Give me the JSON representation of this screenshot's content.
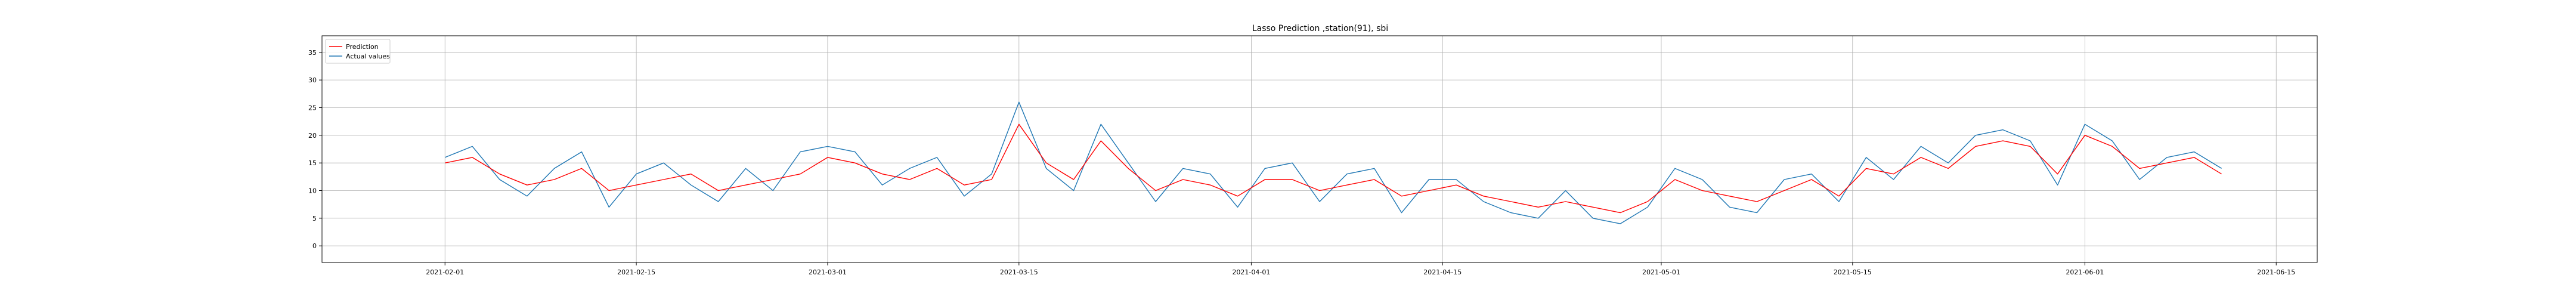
{
  "chart_data": {
    "type": "line",
    "title": "Lasso Prediction ,station(91), sbi",
    "xlabel": "",
    "ylabel": "",
    "x_range": [
      "2021-01-23",
      "2021-06-18"
    ],
    "ylim": [
      -3,
      38
    ],
    "x_ticks": [
      "2021-02-01",
      "2021-02-15",
      "2021-03-01",
      "2021-03-15",
      "2021-04-01",
      "2021-04-15",
      "2021-05-01",
      "2021-05-15",
      "2021-06-01",
      "2021-06-15"
    ],
    "y_ticks": [
      0,
      5,
      10,
      15,
      20,
      25,
      30,
      35
    ],
    "grid": true,
    "legend": "top-left",
    "series": [
      {
        "name": "Prediction",
        "color": "#ff0000",
        "x": [
          "2021-02-01",
          "2021-02-03",
          "2021-02-05",
          "2021-02-07",
          "2021-02-09",
          "2021-02-11",
          "2021-02-13",
          "2021-02-15",
          "2021-02-17",
          "2021-02-19",
          "2021-02-21",
          "2021-02-23",
          "2021-02-25",
          "2021-02-27",
          "2021-03-01",
          "2021-03-03",
          "2021-03-05",
          "2021-03-07",
          "2021-03-09",
          "2021-03-11",
          "2021-03-13",
          "2021-03-15",
          "2021-03-17",
          "2021-03-19",
          "2021-03-21",
          "2021-03-23",
          "2021-03-25",
          "2021-03-27",
          "2021-03-29",
          "2021-03-31",
          "2021-04-02",
          "2021-04-04",
          "2021-04-06",
          "2021-04-08",
          "2021-04-10",
          "2021-04-12",
          "2021-04-14",
          "2021-04-16",
          "2021-04-18",
          "2021-04-20",
          "2021-04-22",
          "2021-04-24",
          "2021-04-26",
          "2021-04-28",
          "2021-04-30",
          "2021-05-02",
          "2021-05-04",
          "2021-05-06",
          "2021-05-08",
          "2021-05-10",
          "2021-05-12",
          "2021-05-14",
          "2021-05-16",
          "2021-05-18",
          "2021-05-20",
          "2021-05-22",
          "2021-05-24",
          "2021-05-26",
          "2021-05-28",
          "2021-05-30",
          "2021-06-01",
          "2021-06-03",
          "2021-06-05",
          "2021-06-07",
          "2021-06-09",
          "2021-06-11"
        ],
        "values": [
          15,
          16,
          13,
          11,
          12,
          14,
          10,
          11,
          12,
          13,
          10,
          11,
          12,
          13,
          16,
          15,
          13,
          12,
          14,
          11,
          12,
          22,
          15,
          12,
          19,
          14,
          10,
          12,
          11,
          9,
          12,
          12,
          10,
          11,
          12,
          9,
          10,
          11,
          9,
          8,
          7,
          8,
          7,
          6,
          8,
          12,
          10,
          9,
          8,
          10,
          12,
          9,
          14,
          13,
          16,
          14,
          18,
          19,
          18,
          13,
          20,
          18,
          14,
          15,
          16,
          13
        ]
      },
      {
        "name": "Actual values",
        "color": "#1f77b4",
        "x": [
          "2021-02-01",
          "2021-02-03",
          "2021-02-05",
          "2021-02-07",
          "2021-02-09",
          "2021-02-11",
          "2021-02-13",
          "2021-02-15",
          "2021-02-17",
          "2021-02-19",
          "2021-02-21",
          "2021-02-23",
          "2021-02-25",
          "2021-02-27",
          "2021-03-01",
          "2021-03-03",
          "2021-03-05",
          "2021-03-07",
          "2021-03-09",
          "2021-03-11",
          "2021-03-13",
          "2021-03-15",
          "2021-03-17",
          "2021-03-19",
          "2021-03-21",
          "2021-03-23",
          "2021-03-25",
          "2021-03-27",
          "2021-03-29",
          "2021-03-31",
          "2021-04-02",
          "2021-04-04",
          "2021-04-06",
          "2021-04-08",
          "2021-04-10",
          "2021-04-12",
          "2021-04-14",
          "2021-04-16",
          "2021-04-18",
          "2021-04-20",
          "2021-04-22",
          "2021-04-24",
          "2021-04-26",
          "2021-04-28",
          "2021-04-30",
          "2021-05-02",
          "2021-05-04",
          "2021-05-06",
          "2021-05-08",
          "2021-05-10",
          "2021-05-12",
          "2021-05-14",
          "2021-05-16",
          "2021-05-18",
          "2021-05-20",
          "2021-05-22",
          "2021-05-24",
          "2021-05-26",
          "2021-05-28",
          "2021-05-30",
          "2021-06-01",
          "2021-06-03",
          "2021-06-05",
          "2021-06-07",
          "2021-06-09",
          "2021-06-11"
        ],
        "values": [
          16,
          18,
          12,
          9,
          14,
          17,
          7,
          13,
          15,
          11,
          8,
          14,
          10,
          17,
          18,
          17,
          11,
          14,
          16,
          9,
          13,
          26,
          14,
          10,
          22,
          15,
          8,
          14,
          13,
          7,
          14,
          15,
          8,
          13,
          14,
          6,
          12,
          12,
          8,
          6,
          5,
          10,
          5,
          4,
          7,
          14,
          12,
          7,
          6,
          12,
          13,
          8,
          16,
          12,
          18,
          15,
          20,
          21,
          19,
          11,
          22,
          19,
          12,
          16,
          17,
          14
        ]
      }
    ]
  }
}
